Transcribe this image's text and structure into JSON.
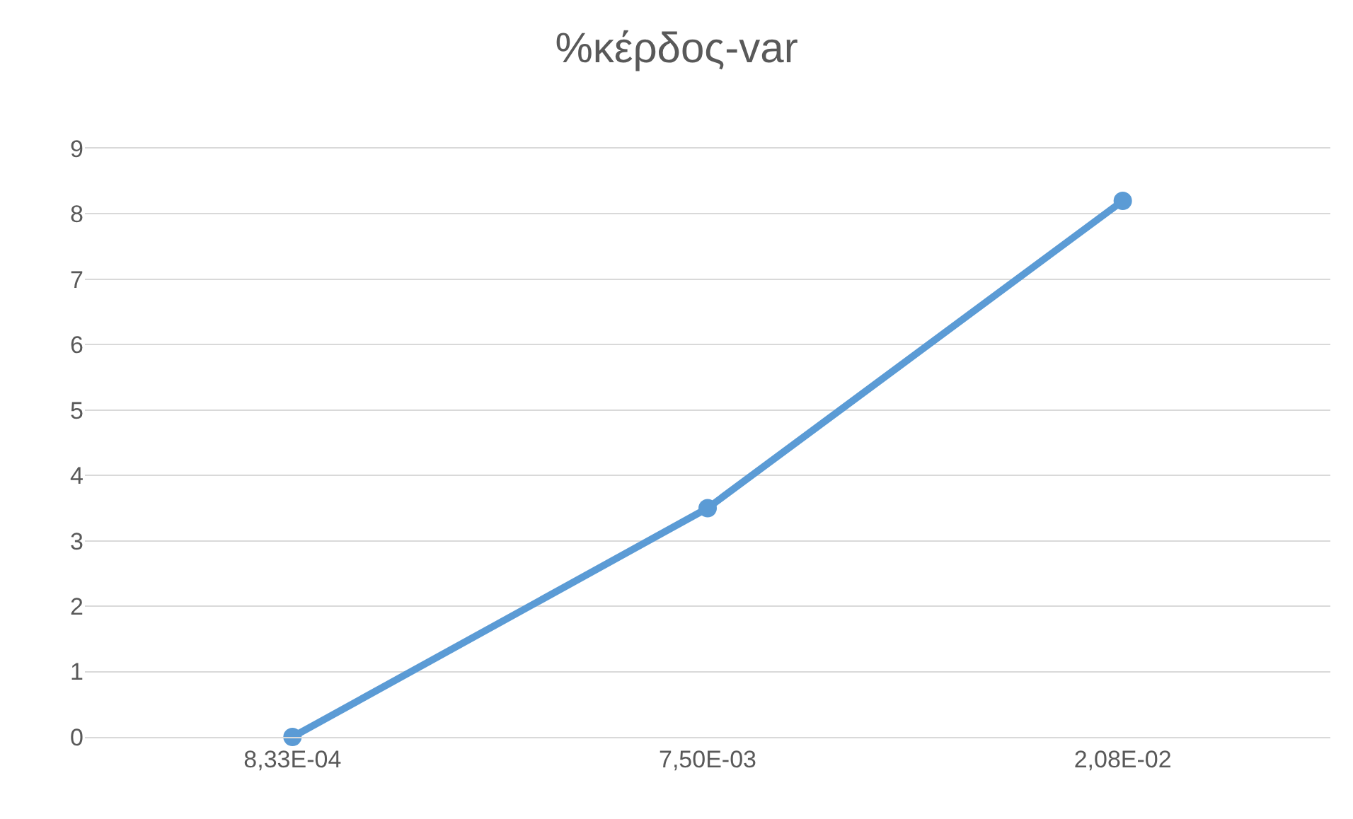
{
  "chart_data": {
    "type": "line",
    "title": "%κέρδος-var",
    "categories": [
      "8,33E-04",
      "7,50E-03",
      "2,08E-02"
    ],
    "series": [
      {
        "color": "#5b9bd5",
        "values": [
          0,
          3.5,
          8.2
        ]
      }
    ],
    "ylim": [
      0,
      9
    ],
    "yticks": [
      0,
      1,
      2,
      3,
      4,
      5,
      6,
      7,
      8,
      9
    ],
    "grid": "y",
    "marker": "circle",
    "line_style": "solid",
    "legend": false
  }
}
